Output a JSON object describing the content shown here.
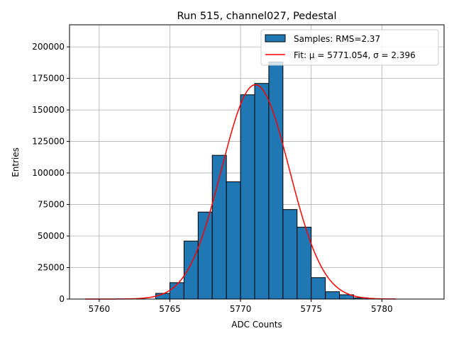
{
  "chart_data": {
    "type": "bar",
    "title": "Run 515, channel027, Pedestal",
    "xlabel": "ADC Counts",
    "ylabel": "Entries",
    "xlim": [
      5757.9,
      5784.4
    ],
    "ylim": [
      0,
      217500
    ],
    "xticks": [
      5760,
      5765,
      5770,
      5775,
      5780
    ],
    "yticks": [
      0,
      25000,
      50000,
      75000,
      100000,
      125000,
      150000,
      175000,
      200000
    ],
    "grid": true,
    "legend_position": "top-right",
    "histogram": {
      "name": "Samples: RMS=2.37",
      "color": "#1f77b4",
      "bin_edges": [
        5764,
        5765,
        5766,
        5767,
        5768,
        5769,
        5770,
        5771,
        5772,
        5773,
        5774,
        5775,
        5776,
        5777,
        5778,
        5779
      ],
      "values": [
        4500,
        13000,
        46000,
        69000,
        114000,
        93000,
        162000,
        171000,
        188000,
        71000,
        57000,
        17000,
        5800,
        3400,
        1000
      ]
    },
    "fit": {
      "name_prefix": "Fit: ",
      "name": "Fit: μ = 5771.054, σ = 2.396",
      "mu": 5771.054,
      "sigma": 2.396,
      "amplitude": 170000,
      "x_range": [
        5759,
        5781
      ],
      "color": "#ff0000"
    }
  }
}
